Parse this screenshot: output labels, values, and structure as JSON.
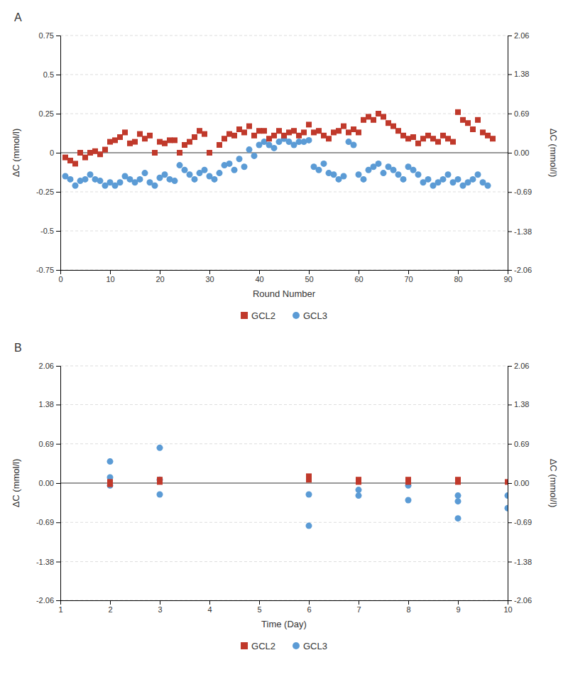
{
  "chart_data": [
    {
      "type": "scatter",
      "title": "A",
      "x_label": "Round Number",
      "y_label": "ΔC (mmol/l)",
      "y2_label": "ΔC (mmol/l)",
      "xlim": [
        0,
        90
      ],
      "xticks": [
        0,
        10,
        20,
        30,
        40,
        50,
        60,
        70,
        80,
        90
      ],
      "ylim": [
        -0.75,
        0.75
      ],
      "yticks": [
        -0.75,
        -0.5,
        -0.25,
        0,
        0.25,
        0.5,
        0.75
      ],
      "y2lim": [
        -2.06,
        2.06
      ],
      "y2ticks": [
        -2.06,
        -1.38,
        -0.69,
        {
          "value": 0,
          "label": "0.00"
        },
        0.69,
        1.38,
        2.06
      ],
      "grid": true,
      "legend": "bottom",
      "series": [
        {
          "name": "GCL2",
          "color": "#C0392B",
          "marker": "square",
          "x": [
            1,
            2,
            3,
            4,
            5,
            6,
            7,
            8,
            9,
            10,
            11,
            12,
            13,
            14,
            15,
            16,
            17,
            18,
            19,
            20,
            21,
            22,
            23,
            24,
            25,
            26,
            27,
            28,
            29,
            30,
            32,
            33,
            34,
            35,
            36,
            37,
            38,
            39,
            40,
            41,
            42,
            43,
            44,
            45,
            46,
            47,
            48,
            49,
            50,
            51,
            52,
            53,
            54,
            55,
            56,
            57,
            58,
            59,
            60,
            61,
            62,
            63,
            64,
            65,
            66,
            67,
            68,
            69,
            70,
            71,
            72,
            73,
            74,
            75,
            76,
            77,
            78,
            79,
            80,
            81,
            82,
            83,
            84,
            85,
            86,
            87
          ],
          "values": [
            -0.03,
            -0.05,
            -0.07,
            0.0,
            -0.03,
            0.0,
            0.01,
            -0.01,
            0.02,
            0.07,
            0.08,
            0.1,
            0.13,
            0.06,
            0.07,
            0.12,
            0.09,
            0.11,
            0.0,
            0.07,
            0.06,
            0.08,
            0.08,
            0.0,
            0.05,
            0.07,
            0.1,
            0.14,
            0.12,
            0.0,
            0.05,
            0.09,
            0.12,
            0.11,
            0.15,
            0.13,
            0.17,
            0.11,
            0.14,
            0.14,
            0.09,
            0.11,
            0.14,
            0.11,
            0.13,
            0.14,
            0.11,
            0.13,
            0.18,
            0.13,
            0.14,
            0.11,
            0.09,
            0.13,
            0.14,
            0.17,
            0.13,
            0.15,
            0.13,
            0.21,
            0.23,
            0.21,
            0.25,
            0.23,
            0.19,
            0.17,
            0.14,
            0.11,
            0.09,
            0.1,
            0.06,
            0.09,
            0.11,
            0.09,
            0.07,
            0.11,
            0.09,
            0.07,
            0.26,
            0.21,
            0.19,
            0.15,
            0.21,
            0.13,
            0.11,
            0.09
          ]
        },
        {
          "name": "GCL3",
          "color": "#5B9BD5",
          "marker": "circle",
          "x": [
            1,
            2,
            3,
            4,
            5,
            6,
            7,
            8,
            9,
            10,
            11,
            12,
            13,
            14,
            15,
            16,
            17,
            18,
            19,
            20,
            21,
            22,
            23,
            24,
            25,
            26,
            27,
            28,
            29,
            30,
            31,
            32,
            33,
            34,
            35,
            36,
            37,
            38,
            39,
            40,
            41,
            42,
            43,
            44,
            45,
            46,
            47,
            48,
            49,
            50,
            51,
            52,
            53,
            54,
            55,
            56,
            57,
            58,
            59,
            60,
            61,
            62,
            63,
            64,
            65,
            66,
            67,
            68,
            69,
            70,
            71,
            72,
            73,
            74,
            75,
            76,
            77,
            78,
            79,
            80,
            81,
            82,
            83,
            84,
            85,
            86
          ],
          "values": [
            -0.15,
            -0.17,
            -0.21,
            -0.18,
            -0.17,
            -0.14,
            -0.17,
            -0.18,
            -0.21,
            -0.19,
            -0.21,
            -0.19,
            -0.15,
            -0.17,
            -0.19,
            -0.17,
            -0.13,
            -0.19,
            -0.21,
            -0.16,
            -0.14,
            -0.17,
            -0.18,
            -0.08,
            -0.11,
            -0.14,
            -0.17,
            -0.13,
            -0.11,
            -0.15,
            -0.17,
            -0.13,
            -0.08,
            -0.07,
            -0.11,
            -0.04,
            -0.09,
            0.02,
            -0.02,
            0.05,
            0.07,
            0.05,
            0.03,
            0.07,
            0.09,
            0.07,
            0.05,
            0.07,
            0.07,
            0.08,
            -0.09,
            -0.11,
            -0.07,
            -0.13,
            -0.14,
            -0.17,
            -0.15,
            0.07,
            0.05,
            -0.14,
            -0.17,
            -0.11,
            -0.09,
            -0.07,
            -0.13,
            -0.09,
            -0.11,
            -0.14,
            -0.17,
            -0.09,
            -0.11,
            -0.14,
            -0.19,
            -0.17,
            -0.21,
            -0.19,
            -0.17,
            -0.14,
            -0.19,
            -0.17,
            -0.21,
            -0.19,
            -0.17,
            -0.14,
            -0.19,
            -0.21
          ]
        }
      ]
    },
    {
      "type": "scatter",
      "title": "B",
      "x_label": "Time (Day)",
      "y_label": "ΔC (mmol/l)",
      "y2_label": "ΔC (mmol/l)",
      "xlim": [
        1,
        10
      ],
      "xticks": [
        1,
        2,
        3,
        4,
        5,
        6,
        7,
        8,
        9,
        10
      ],
      "ylim": [
        -2.06,
        2.06
      ],
      "yticks": [
        -2.06,
        -1.38,
        -0.69,
        {
          "value": 0,
          "label": "0.00"
        },
        0.69,
        1.38,
        2.06
      ],
      "y2lim": [
        -2.06,
        2.06
      ],
      "y2ticks": [
        -2.06,
        -1.38,
        -0.69,
        {
          "value": 0,
          "label": "0.00"
        },
        0.69,
        1.38,
        2.06
      ],
      "grid": true,
      "legend": "bottom",
      "series": [
        {
          "name": "GCL2",
          "color": "#C0392B",
          "marker": "square",
          "x": [
            2,
            2,
            3,
            3,
            6,
            6,
            7,
            7,
            8,
            8,
            9,
            9,
            10
          ],
          "values": [
            -0.02,
            0.02,
            0.06,
            0.02,
            0.12,
            0.06,
            0.06,
            0.02,
            0.06,
            0.02,
            0.06,
            0.02,
            0.02
          ]
        },
        {
          "name": "GCL3",
          "color": "#5B9BD5",
          "marker": "circle",
          "x": [
            2,
            2,
            2,
            3,
            3,
            3,
            6,
            6,
            7,
            7,
            8,
            8,
            9,
            9,
            9,
            10,
            10
          ],
          "values": [
            0.38,
            0.1,
            -0.04,
            0.62,
            0.06,
            -0.2,
            -0.75,
            -0.2,
            -0.12,
            -0.22,
            -0.3,
            -0.04,
            -0.62,
            -0.32,
            -0.22,
            -0.44,
            -0.22
          ]
        }
      ]
    }
  ]
}
